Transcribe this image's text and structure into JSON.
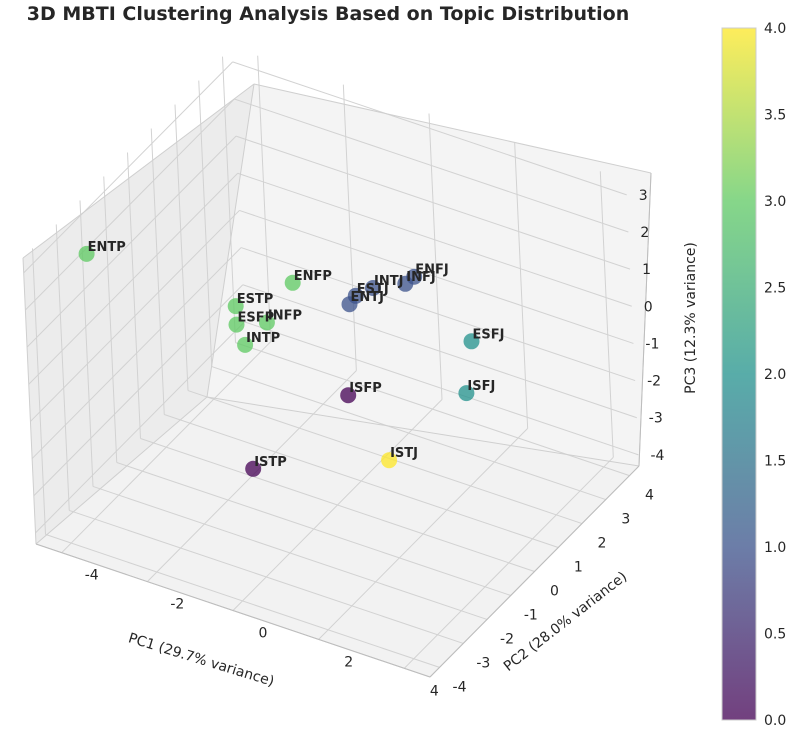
{
  "chart_data": {
    "type": "scatter",
    "title": "3D MBTI Clustering Analysis Based on Topic Distribution",
    "xlabel": "PC1 (29.7% variance)",
    "ylabel": "PC2 (28.0% variance)",
    "zlabel": "PC3 (12.3% variance)",
    "xlim": [
      -4.6,
      4.6
    ],
    "ylim": [
      -4.4,
      4.4
    ],
    "zlim": [
      -4.3,
      3.4
    ],
    "xticks": [
      "-4",
      "-2",
      "0",
      "2",
      "4"
    ],
    "yticks": [
      "-4",
      "-3",
      "-2",
      "-1",
      "0",
      "1",
      "2",
      "3",
      "4"
    ],
    "zticks": [
      "-4",
      "-3",
      "-2",
      "-1",
      "0",
      "1",
      "2",
      "3"
    ],
    "colorbar": {
      "min": 0.0,
      "max": 4.0,
      "ticks": [
        "0.0",
        "0.5",
        "1.0",
        "1.5",
        "2.0",
        "2.5",
        "3.0",
        "3.5",
        "4.0"
      ]
    },
    "points": [
      {
        "label": "ENFJ",
        "x": 2.3,
        "y": -0.4,
        "z": 3.0,
        "cluster": 1
      },
      {
        "label": "INFJ",
        "x": 2.2,
        "y": -0.6,
        "z": 2.9,
        "cluster": 1
      },
      {
        "label": "INTJ",
        "x": 0.9,
        "y": 0.3,
        "z": 1.7,
        "cluster": 1
      },
      {
        "label": "ESTJ",
        "x": 0.6,
        "y": 0.1,
        "z": 1.5,
        "cluster": 1
      },
      {
        "label": "ENTJ",
        "x": 0.5,
        "y": 0.0,
        "z": 1.3,
        "cluster": 1
      },
      {
        "label": "ENFP",
        "x": -1.0,
        "y": 0.3,
        "z": 1.1,
        "cluster": 3
      },
      {
        "label": "ENTP",
        "x": -4.5,
        "y": -2.0,
        "z": 2.0,
        "cluster": 3
      },
      {
        "label": "ESTP",
        "x": -2.2,
        "y": 0.0,
        "z": 0.2,
        "cluster": 3
      },
      {
        "label": "ESFP",
        "x": -2.2,
        "y": 0.0,
        "z": -0.3,
        "cluster": 3
      },
      {
        "label": "INFP",
        "x": -1.3,
        "y": -0.3,
        "z": 0.3,
        "cluster": 3
      },
      {
        "label": "INTP",
        "x": -1.9,
        "y": -0.2,
        "z": -0.6,
        "cluster": 3
      },
      {
        "label": "ISFP",
        "x": -0.1,
        "y": 0.8,
        "z": -1.9,
        "cluster": 0
      },
      {
        "label": "ESFJ",
        "x": 2.0,
        "y": 2.3,
        "z": -0.6,
        "cluster": 2
      },
      {
        "label": "ISFJ",
        "x": 2.0,
        "y": 2.0,
        "z": -1.8,
        "cluster": 2
      },
      {
        "label": "ISTJ",
        "x": 0.8,
        "y": 0.8,
        "z": -3.3,
        "cluster": 4
      },
      {
        "label": "ISTP",
        "x": -1.9,
        "y": -0.1,
        "z": -4.0,
        "cluster": 0
      }
    ]
  }
}
